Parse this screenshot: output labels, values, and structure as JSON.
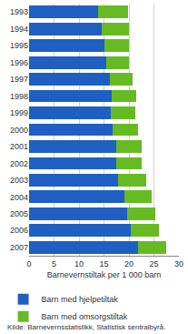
{
  "chart_data": {
    "type": "bar",
    "orientation": "horizontal",
    "stacked": true,
    "categories": [
      "1993",
      "1994",
      "1995",
      "1996",
      "1997",
      "1998",
      "1999",
      "2000",
      "2001",
      "2002",
      "2003",
      "2004",
      "2005",
      "2006",
      "2007"
    ],
    "series": [
      {
        "name": "Barn med hjelpetiltak",
        "color": "#1f5fc4",
        "values": [
          13.8,
          14.5,
          15.0,
          15.5,
          16.2,
          16.6,
          16.3,
          16.8,
          17.5,
          17.4,
          17.9,
          19.0,
          19.6,
          20.3,
          21.8
        ]
      },
      {
        "name": "Barn med omsorgstiltak",
        "color": "#66bb22",
        "values": [
          6.0,
          5.5,
          5.0,
          4.5,
          4.6,
          4.9,
          4.9,
          5.0,
          5.0,
          5.2,
          5.5,
          5.6,
          5.7,
          5.7,
          5.7
        ]
      }
    ],
    "xlabel": "Barnevernstiltak per 1 000 barn",
    "xlim": [
      0,
      30
    ],
    "xticks": [
      0,
      5,
      10,
      15,
      20,
      25,
      30
    ],
    "grid": true,
    "legend": "bottom",
    "source": "Kilde: Barnevernsstatistikk, Statistisk sentralbyrå."
  }
}
